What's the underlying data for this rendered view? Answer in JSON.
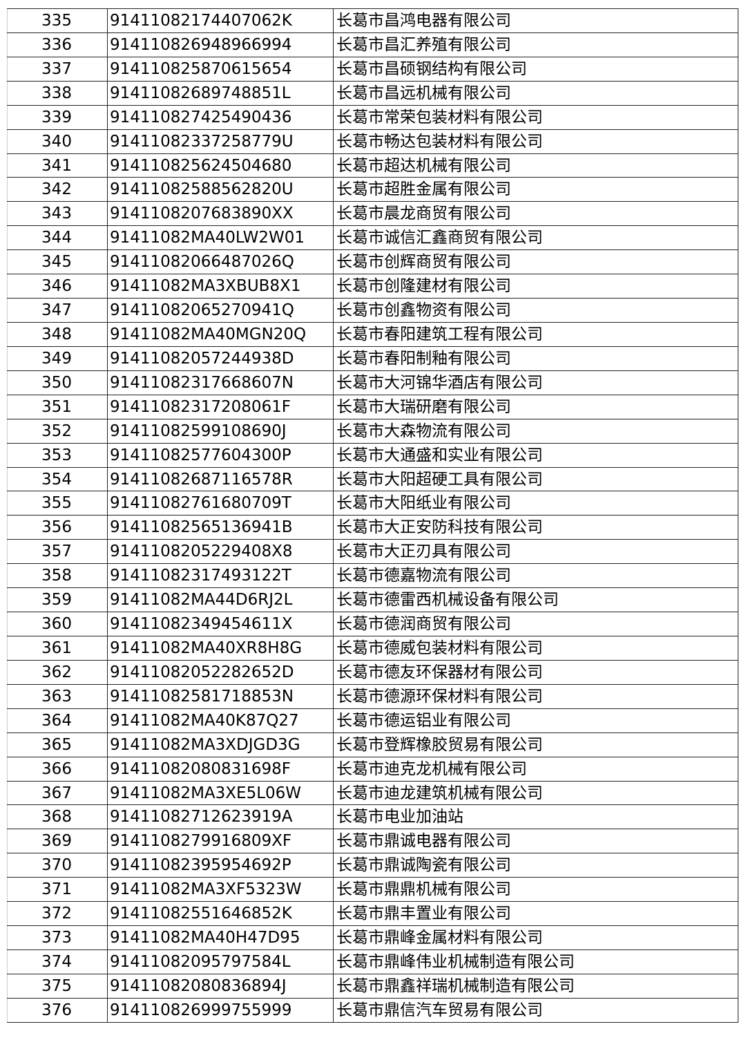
{
  "table": {
    "rows": [
      [
        "335",
        "91411082174407062K",
        "长葛市昌鸿电器有限公司"
      ],
      [
        "336",
        "914110826948966994",
        "长葛市昌汇养殖有限公司"
      ],
      [
        "337",
        "914110825870615654",
        "长葛市昌硕钢结构有限公司"
      ],
      [
        "338",
        "91411082689748851L",
        "长葛市昌远机械有限公司"
      ],
      [
        "339",
        "914110827425490436",
        "长葛市常荣包装材料有限公司"
      ],
      [
        "340",
        "91411082337258779U",
        "长葛市畅达包装材料有限公司"
      ],
      [
        "341",
        "914110825624504680",
        "长葛市超达机械有限公司"
      ],
      [
        "342",
        "91411082588562820U",
        "长葛市超胜金属有限公司"
      ],
      [
        "343",
        "9141108207683890XX",
        "长葛市晨龙商贸有限公司"
      ],
      [
        "344",
        "91411082MA40LW2W01",
        "长葛市诚信汇鑫商贸有限公司"
      ],
      [
        "345",
        "91411082066487026Q",
        "长葛市创辉商贸有限公司"
      ],
      [
        "346",
        "91411082MA3XBUB8X1",
        "长葛市创隆建材有限公司"
      ],
      [
        "347",
        "91411082065270941Q",
        "长葛市创鑫物资有限公司"
      ],
      [
        "348",
        "91411082MA40MGN20Q",
        "长葛市春阳建筑工程有限公司"
      ],
      [
        "349",
        "91411082057244938D",
        "长葛市春阳制釉有限公司"
      ],
      [
        "350",
        "91411082317668607N",
        "长葛市大河锦华酒店有限公司"
      ],
      [
        "351",
        "91411082317208061F",
        "长葛市大瑞研磨有限公司"
      ],
      [
        "352",
        "91411082599108690J",
        "长葛市大森物流有限公司"
      ],
      [
        "353",
        "91411082577604300P",
        "长葛市大通盛和实业有限公司"
      ],
      [
        "354",
        "91411082687116578R",
        "长葛市大阳超硬工具有限公司"
      ],
      [
        "355",
        "91411082761680709T",
        "长葛市大阳纸业有限公司"
      ],
      [
        "356",
        "91411082565136941B",
        "长葛市大正安防科技有限公司"
      ],
      [
        "357",
        "9141108205229408X8",
        "长葛市大正刃具有限公司"
      ],
      [
        "358",
        "91411082317493122T",
        "长葛市德嘉物流有限公司"
      ],
      [
        "359",
        "91411082MA44D6RJ2L",
        "长葛市德雷西机械设备有限公司"
      ],
      [
        "360",
        "91411082349454611X",
        "长葛市德润商贸有限公司"
      ],
      [
        "361",
        "91411082MA40XR8H8G",
        "长葛市德威包装材料有限公司"
      ],
      [
        "362",
        "91411082052282652D",
        "长葛市德友环保器材有限公司"
      ],
      [
        "363",
        "91411082581718853N",
        "长葛市德源环保材料有限公司"
      ],
      [
        "364",
        "91411082MA40K87Q27",
        "长葛市德运铝业有限公司"
      ],
      [
        "365",
        "91411082MA3XDJGD3G",
        "长葛市登辉橡胶贸易有限公司"
      ],
      [
        "366",
        "91411082080831698F",
        "长葛市迪克龙机械有限公司"
      ],
      [
        "367",
        "91411082MA3XE5L06W",
        "长葛市迪龙建筑机械有限公司"
      ],
      [
        "368",
        "91411082712623919A",
        "长葛市电业加油站"
      ],
      [
        "369",
        "9141108279916809XF",
        "长葛市鼎诚电器有限公司"
      ],
      [
        "370",
        "91411082395954692P",
        "长葛市鼎诚陶瓷有限公司"
      ],
      [
        "371",
        "91411082MA3XF5323W",
        "长葛市鼎鼎机械有限公司"
      ],
      [
        "372",
        "91411082551646852K",
        "长葛市鼎丰置业有限公司"
      ],
      [
        "373",
        "91411082MA40H47D95",
        "长葛市鼎峰金属材料有限公司"
      ],
      [
        "374",
        "91411082095797584L",
        "长葛市鼎峰伟业机械制造有限公司"
      ],
      [
        "375",
        "91411082080836894J",
        "长葛市鼎鑫祥瑞机械制造有限公司"
      ],
      [
        "376",
        "914110826999755999",
        "长葛市鼎信汽车贸易有限公司"
      ]
    ]
  }
}
